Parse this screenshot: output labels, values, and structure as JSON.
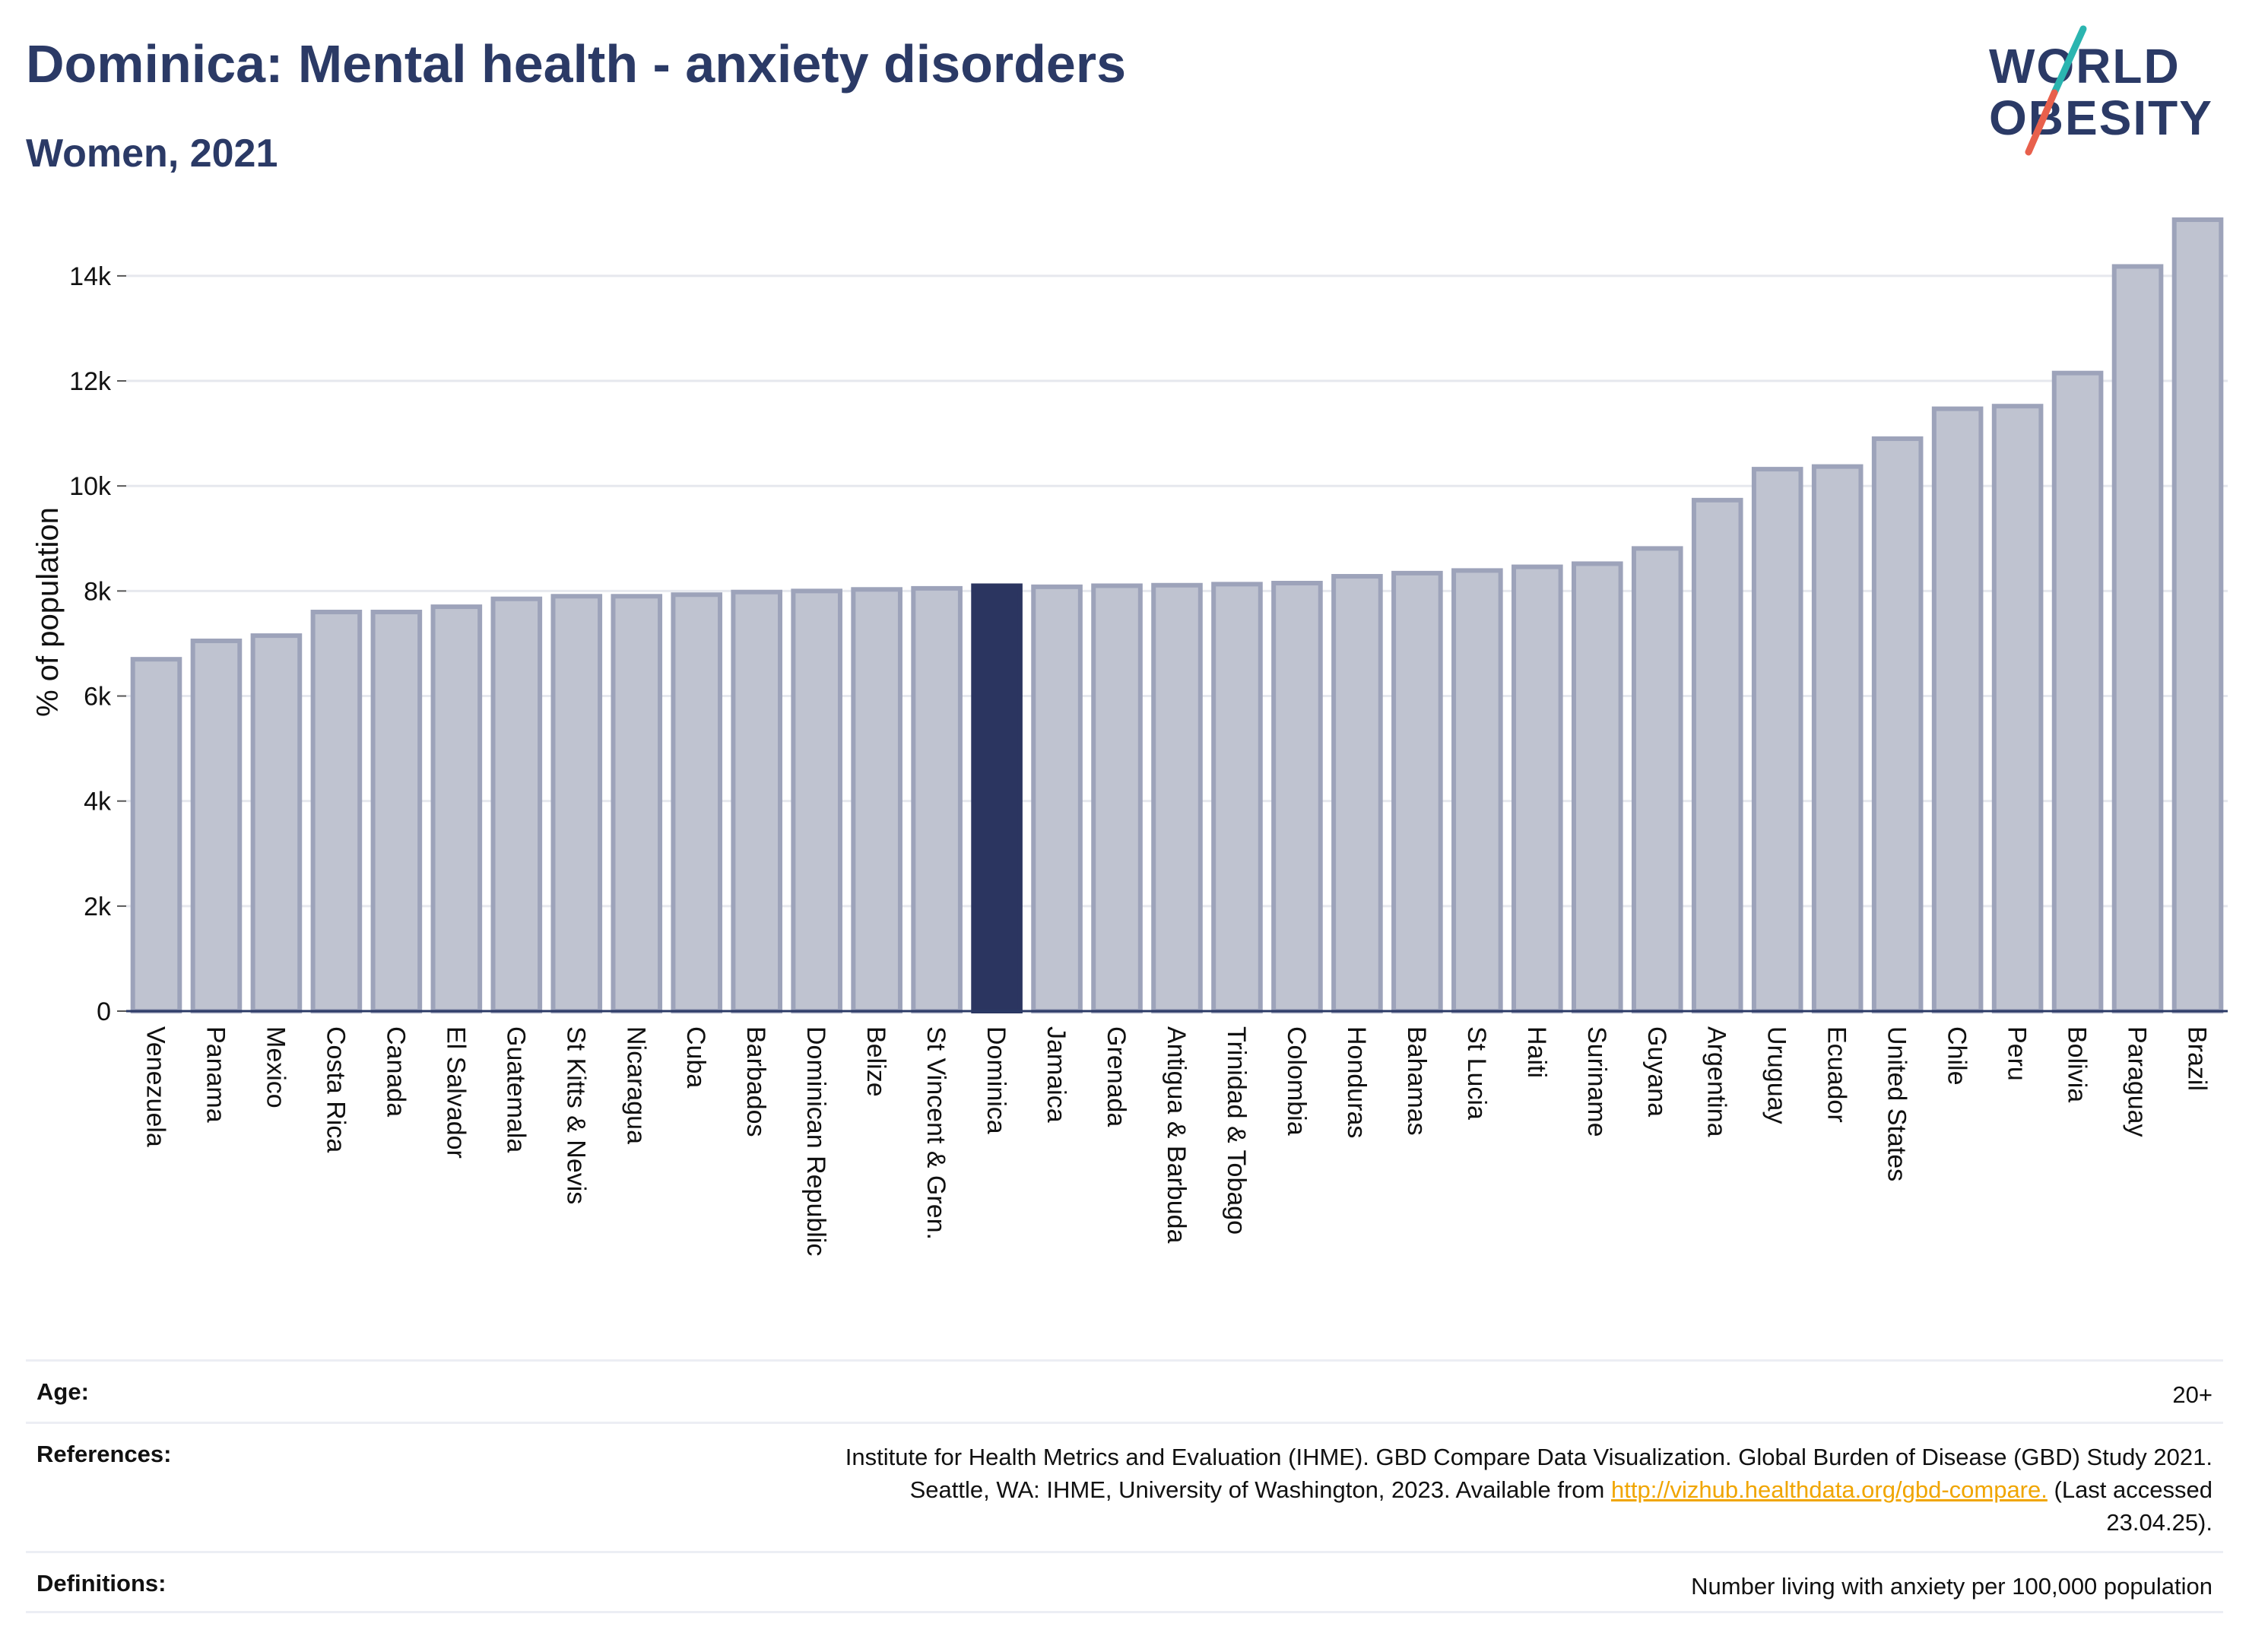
{
  "header": {
    "title": "Dominica: Mental health - anxiety disorders",
    "subtitle": "Women, 2021"
  },
  "logo": {
    "line1": "WORLD",
    "line2": "OBESITY",
    "colors": {
      "text": "#2b3a66",
      "slash_top": "#2bb5b0",
      "slash_bottom": "#e8604c"
    }
  },
  "colors": {
    "bar": "#bfc3d0",
    "bar_border": "#9da3ba",
    "highlight": "#2b3560",
    "title": "#2b3a66",
    "grid": "#e6e8ee",
    "link": "#f0a500"
  },
  "chart_data": {
    "type": "bar",
    "ylabel": "% of population",
    "xlabel": "",
    "ylim": [
      0,
      15200
    ],
    "yticks": [
      0,
      2000,
      4000,
      6000,
      8000,
      10000,
      12000,
      14000
    ],
    "ytick_labels": [
      "0",
      "2k",
      "4k",
      "6k",
      "8k",
      "10k",
      "12k",
      "14k"
    ],
    "grid": true,
    "highlight": "Dominica",
    "categories": [
      "Venezuela",
      "Panama",
      "Mexico",
      "Costa Rica",
      "Canada",
      "El Salvador",
      "Guatemala",
      "St Kitts & Nevis",
      "Nicaragua",
      "Cuba",
      "Barbados",
      "Dominican Republic",
      "Belize",
      "St Vincent & Gren.",
      "Dominica",
      "Jamaica",
      "Grenada",
      "Antigua & Barbuda",
      "Trinidad & Tobago",
      "Colombia",
      "Honduras",
      "Bahamas",
      "St Lucia",
      "Haiti",
      "Suriname",
      "Guyana",
      "Argentina",
      "Uruguay",
      "Ecuador",
      "United States",
      "Chile",
      "Peru",
      "Bolivia",
      "Paraguay",
      "Brazil"
    ],
    "values": [
      6700,
      7050,
      7150,
      7600,
      7600,
      7700,
      7850,
      7900,
      7900,
      7930,
      7980,
      8000,
      8030,
      8050,
      8100,
      8080,
      8100,
      8110,
      8130,
      8150,
      8280,
      8340,
      8390,
      8460,
      8520,
      8810,
      9730,
      10320,
      10370,
      10900,
      11470,
      11520,
      12150,
      14180,
      15070
    ]
  },
  "meta": {
    "age_label": "Age:",
    "age_value": "20+",
    "references_label": "References:",
    "references_line1": "Institute for Health Metrics and Evaluation (IHME). GBD Compare Data Visualization. Global Burden of Disease (GBD) Study 2021.",
    "references_line2_pre": "Seattle, WA: IHME, University of Washington, 2023. Available from",
    "references_link": "http://vizhub.healthdata.org/gbd-compare.",
    "references_line2_post": "(Last accessed",
    "references_line3": "23.04.25).",
    "definitions_label": "Definitions:",
    "definitions_value": "Number living with anxiety per 100,000 population"
  }
}
